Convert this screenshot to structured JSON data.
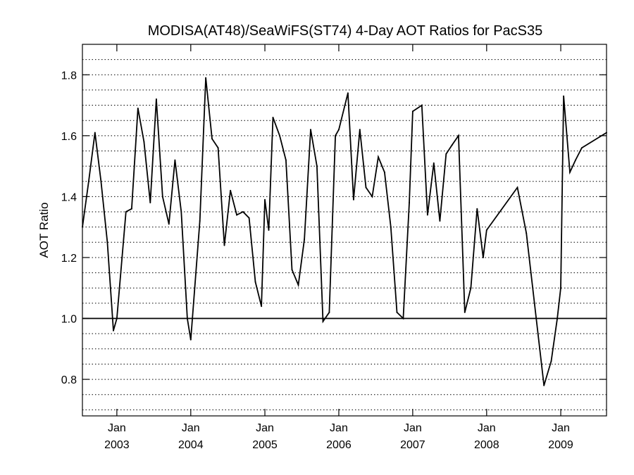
{
  "chart_data": {
    "type": "line",
    "title": "MODISA(AT48)/SeaWiFS(ST74) 4-Day AOT Ratios for PacS35",
    "xlabel": "",
    "ylabel": "AOT Ratio",
    "xlim": [
      "2002-07-15",
      "2009-08-15"
    ],
    "ylim": [
      0.68,
      1.9
    ],
    "y_ticks": [
      "0.8",
      "1.0",
      "1.2",
      "1.4",
      "1.6",
      "1.8"
    ],
    "y_tick_values": [
      0.8,
      1.0,
      1.2,
      1.4,
      1.6,
      1.8
    ],
    "y_minor_gridlines": [
      0.7,
      0.75,
      0.8,
      0.85,
      0.9,
      0.95,
      1.05,
      1.1,
      1.15,
      1.2,
      1.25,
      1.3,
      1.35,
      1.4,
      1.45,
      1.5,
      1.55,
      1.6,
      1.65,
      1.7,
      1.75,
      1.8,
      1.85
    ],
    "reference_line": 1.0,
    "grid": "horizontal dotted",
    "x_ticks": [
      {
        "date": "2003-01-01",
        "month": "Jan",
        "year": "2003"
      },
      {
        "date": "2004-01-01",
        "month": "Jan",
        "year": "2004"
      },
      {
        "date": "2005-01-01",
        "month": "Jan",
        "year": "2005"
      },
      {
        "date": "2006-01-01",
        "month": "Jan",
        "year": "2006"
      },
      {
        "date": "2007-01-01",
        "month": "Jan",
        "year": "2007"
      },
      {
        "date": "2008-01-01",
        "month": "Jan",
        "year": "2008"
      },
      {
        "date": "2009-01-01",
        "month": "Jan",
        "year": "2009"
      }
    ],
    "series": [
      {
        "x": [
          "2002-07-15",
          "2002-08-15",
          "2002-09-15",
          "2002-10-15",
          "2002-11-15",
          "2002-12-15",
          "2003-01-01",
          "2003-02-15",
          "2003-03-15",
          "2003-04-15",
          "2003-05-15",
          "2003-06-15",
          "2003-07-15",
          "2003-08-15",
          "2003-09-15",
          "2003-10-15",
          "2003-11-15",
          "2003-12-15",
          "2004-01-01",
          "2004-02-15",
          "2004-03-15",
          "2004-04-15",
          "2004-05-15",
          "2004-06-15",
          "2004-07-15",
          "2004-08-15",
          "2004-09-15",
          "2004-10-15",
          "2004-11-15",
          "2004-12-15",
          "2005-01-01",
          "2005-01-20",
          "2005-02-10",
          "2005-03-15",
          "2005-04-15",
          "2005-05-15",
          "2005-06-15",
          "2005-07-15",
          "2005-08-15",
          "2005-09-15",
          "2005-10-15",
          "2005-11-15",
          "2005-12-15",
          "2006-01-01",
          "2006-02-15",
          "2006-03-15",
          "2006-04-15",
          "2006-05-15",
          "2006-06-15",
          "2006-07-15",
          "2006-08-15",
          "2006-09-15",
          "2006-10-15",
          "2006-11-15",
          "2006-12-15",
          "2007-01-01",
          "2007-02-15",
          "2007-03-15",
          "2007-04-15",
          "2007-05-15",
          "2007-06-15",
          "2007-07-15",
          "2007-08-15",
          "2007-09-15",
          "2007-10-15",
          "2007-11-15",
          "2007-12-15",
          "2008-01-01",
          "2008-06-01",
          "2008-07-15",
          "2008-10-10",
          "2008-11-15",
          "2008-12-15",
          "2009-01-01",
          "2009-01-15",
          "2009-02-15",
          "2009-03-15",
          "2009-04-15",
          "2009-08-15"
        ],
        "values": [
          1.3,
          1.45,
          1.61,
          1.45,
          1.25,
          0.96,
          1.0,
          1.35,
          1.36,
          1.69,
          1.58,
          1.38,
          1.72,
          1.4,
          1.31,
          1.52,
          1.35,
          1.0,
          0.93,
          1.32,
          1.79,
          1.59,
          1.56,
          1.24,
          1.42,
          1.34,
          1.35,
          1.33,
          1.12,
          1.04,
          1.39,
          1.29,
          1.66,
          1.6,
          1.52,
          1.16,
          1.11,
          1.26,
          1.62,
          1.5,
          0.99,
          1.02,
          1.6,
          1.62,
          1.74,
          1.39,
          1.62,
          1.43,
          1.4,
          1.53,
          1.48,
          1.3,
          1.02,
          1.0,
          1.38,
          1.68,
          1.7,
          1.34,
          1.51,
          1.32,
          1.54,
          1.57,
          1.6,
          1.02,
          1.1,
          1.36,
          1.2,
          1.29,
          1.43,
          1.28,
          0.78,
          0.86,
          1.0,
          1.1,
          1.73,
          1.48,
          1.52,
          1.56,
          1.61
        ]
      }
    ]
  }
}
